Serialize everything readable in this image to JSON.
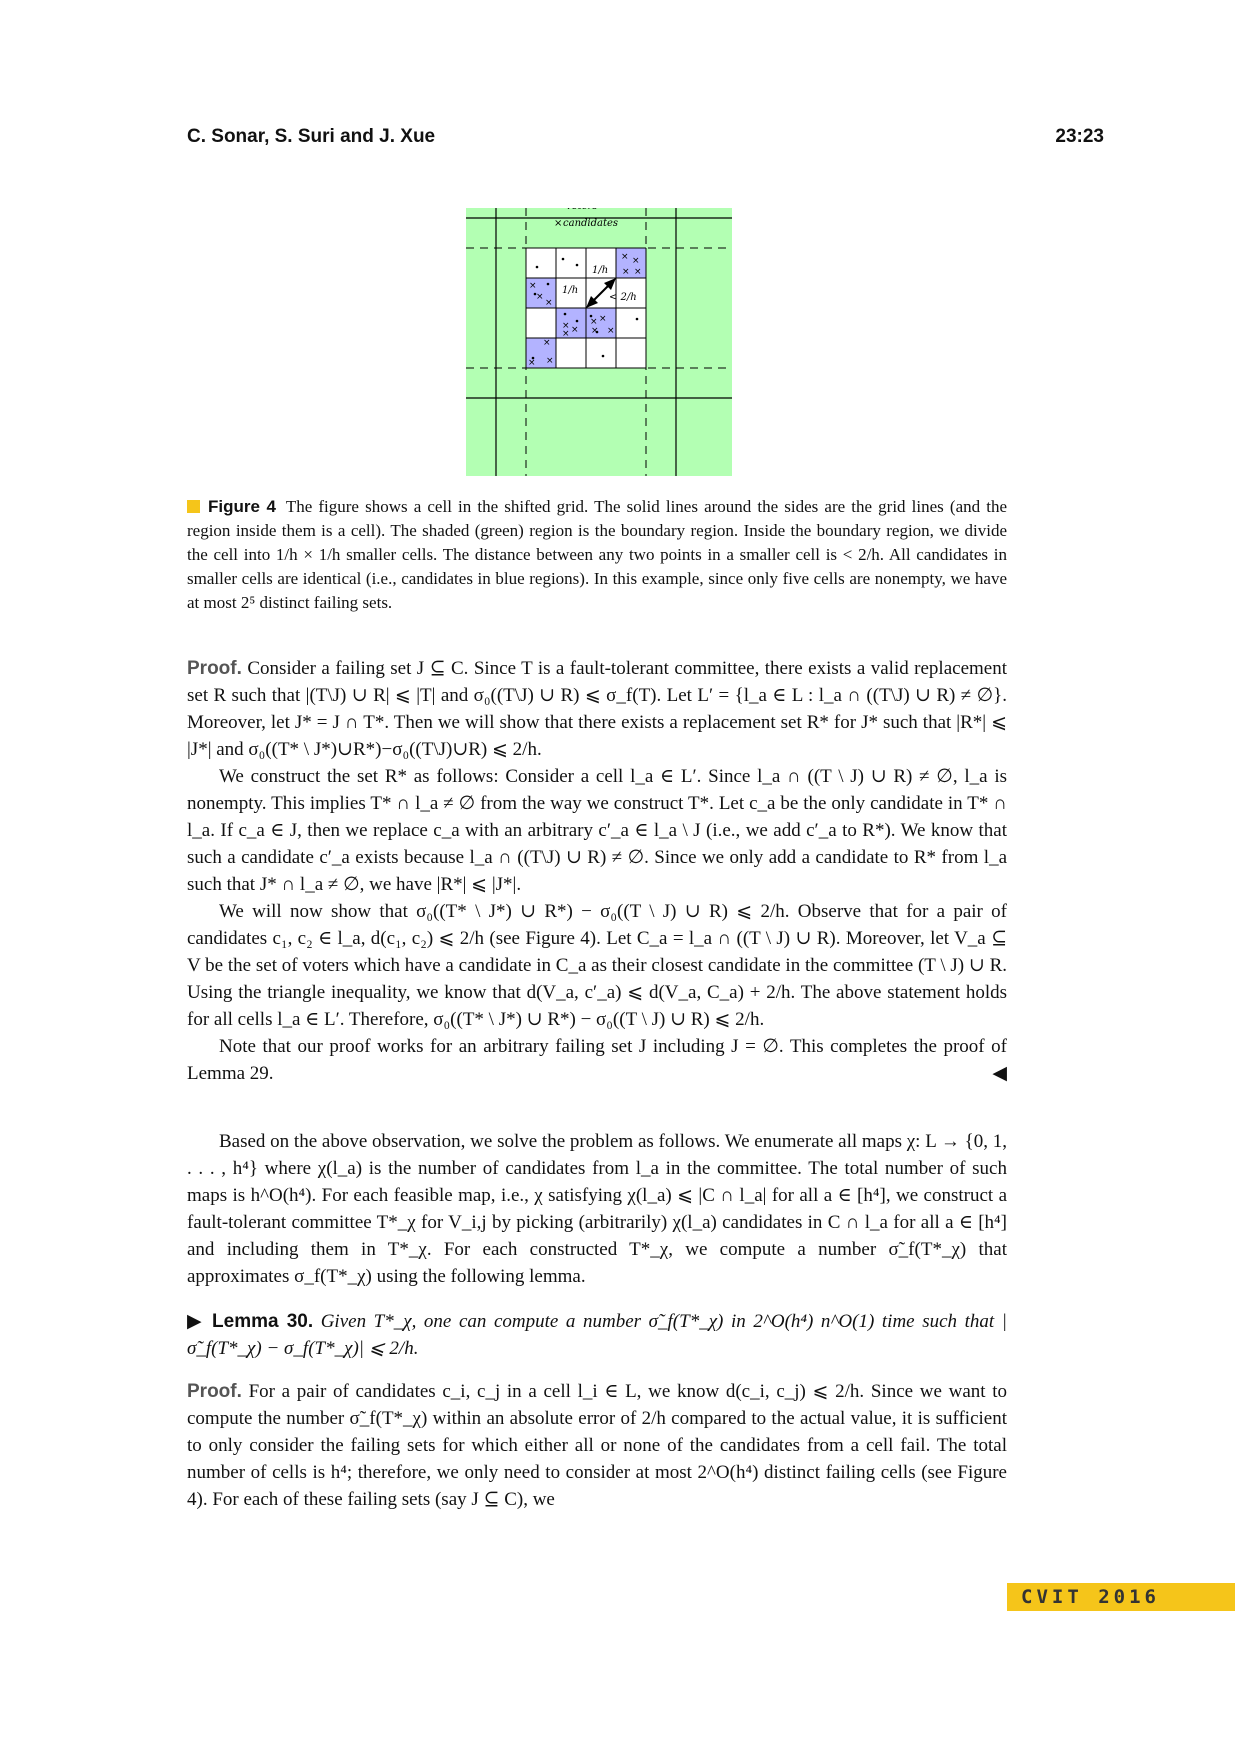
{
  "header": {
    "authors": "C. Sonar, S. Suri and J. Xue",
    "page": "23:23"
  },
  "figure": {
    "legend_voters": "voters",
    "legend_candidates": "candidates",
    "label_small_cell_top": "1/h",
    "label_small_cell_left": "1/h",
    "label_distance": "< 2/h",
    "colors": {
      "boundary": "#b3ffb3",
      "blue": "#b3b3ff",
      "line": "#000000"
    }
  },
  "caption": {
    "label": "Figure 4",
    "text": "The figure shows a cell in the shifted grid. The solid lines around the sides are the grid lines (and the region inside them is a cell). The shaded (green) region is the boundary region. Inside the boundary region, we divide the cell into 1/h × 1/h smaller cells. The distance between any two points in a smaller cell is < 2/h. All candidates in smaller cells are identical (i.e., candidates in blue regions). In this example, since only five cells are nonempty, we have at most 2⁵ distinct failing sets."
  },
  "proof1": {
    "label": "Proof.",
    "p1": "Consider a failing set J ⊆ C. Since T is a fault-tolerant committee, there exists a valid replacement set R such that |(T\\J) ∪ R| ⩽ |T| and σ₀((T\\J) ∪ R) ⩽ σ_f(T). Let L′ = {l_a ∈ L : l_a ∩ ((T\\J) ∪ R) ≠ ∅}. Moreover, let J* = J ∩ T*. Then we will show that there exists a replacement set R* for J* such that |R*| ⩽ |J*| and σ₀((T* \\ J*)∪R*)−σ₀((T\\J)∪R) ⩽ 2/h.",
    "p2": "We construct the set R* as follows: Consider a cell l_a ∈ L′. Since l_a ∩ ((T \\ J) ∪ R) ≠ ∅, l_a is nonempty. This implies T* ∩ l_a ≠ ∅ from the way we construct T*. Let c_a be the only candidate in T* ∩ l_a. If c_a ∈ J, then we replace c_a with an arbitrary c′_a ∈ l_a \\ J (i.e., we add c′_a to R*). We know that such a candidate c′_a exists because l_a ∩ ((T\\J) ∪ R) ≠ ∅. Since we only add a candidate to R* from l_a such that J* ∩ l_a ≠ ∅, we have |R*| ⩽ |J*|.",
    "p3": "We will now show that σ₀((T* \\ J*) ∪ R*) − σ₀((T \\ J) ∪ R) ⩽ 2/h. Observe that for a pair of candidates c₁, c₂ ∈ l_a, d(c₁, c₂) ⩽ 2/h (see Figure 4). Let C_a = l_a ∩ ((T \\ J) ∪ R). Moreover, let V_a ⊆ V be the set of voters which have a candidate in C_a as their closest candidate in the committee (T \\ J) ∪ R. Using the triangle inequality, we know that d(V_a, c′_a) ⩽ d(V_a, C_a) + 2/h. The above statement holds for all cells l_a ∈ L′. Therefore, σ₀((T* \\ J*) ∪ R*) − σ₀((T \\ J) ∪ R) ⩽ 2/h.",
    "p4": "Note that our proof works for an arbitrary failing set J including J = ∅. This completes the proof of Lemma 29.",
    "qed": "◀"
  },
  "para_main": "Based on the above observation, we solve the problem as follows. We enumerate all maps χ: L → {0, 1, . . . , h⁴} where χ(l_a) is the number of candidates from l_a in the committee. The total number of such maps is h^O(h⁴). For each feasible map, i.e., χ satisfying χ(l_a) ⩽ |C ∩ l_a| for all a ∈ [h⁴], we construct a fault-tolerant committee T*_χ for V_i,j by picking (arbitrarily) χ(l_a) candidates in C ∩ l_a for all a ∈ [h⁴] and including them in T*_χ. For each constructed T*_χ, we compute a number σ̃_f(T*_χ) that approximates σ_f(T*_χ) using the following lemma.",
  "lemma": {
    "marker": "▶",
    "label": "Lemma 30.",
    "text": "Given T*_χ, one can compute a number σ̃_f(T*_χ) in 2^O(h⁴) n^O(1) time such that |σ̃_f(T*_χ) − σ_f(T*_χ)| ⩽ 2/h."
  },
  "proof2": {
    "label": "Proof.",
    "text": "For a pair of candidates c_i, c_j in a cell l_i ∈ L, we know d(c_i, c_j) ⩽ 2/h. Since we want to compute the number σ̃_f(T*_χ) within an absolute error of 2/h compared to the actual value, it is sufficient to only consider the failing sets for which either all or none of the candidates from a cell fail. The total number of cells is h⁴; therefore, we only need to consider at most 2^O(h⁴) distinct failing cells (see Figure 4). For each of these failing sets (say J ⊆ C), we"
  },
  "footer": {
    "badge": "CVIT 2016"
  }
}
